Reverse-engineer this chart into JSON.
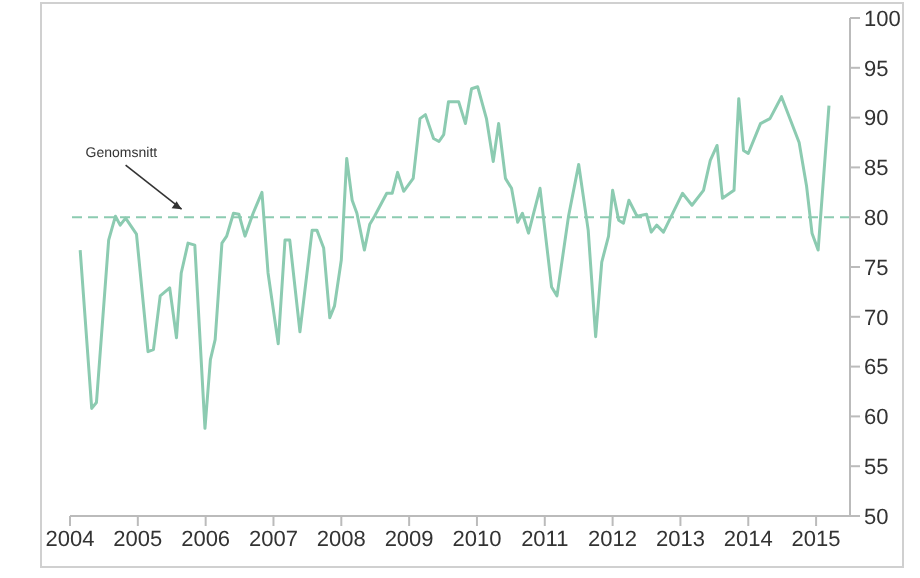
{
  "chart_data": {
    "type": "line",
    "x": [
      2004.15,
      2004.32,
      2004.39,
      2004.57,
      2004.67,
      2004.74,
      2004.82,
      2004.98,
      2005.15,
      2005.23,
      2005.33,
      2005.47,
      2005.57,
      2005.64,
      2005.74,
      2005.84,
      2005.99,
      2006.07,
      2006.14,
      2006.24,
      2006.31,
      2006.41,
      2006.49,
      2006.58,
      2006.7,
      2006.83,
      2006.92,
      2007.07,
      2007.17,
      2007.24,
      2007.39,
      2007.57,
      2007.64,
      2007.74,
      2007.83,
      2007.9,
      2008.0,
      2008.08,
      2008.16,
      2008.23,
      2008.34,
      2008.42,
      2008.49,
      2008.67,
      2008.75,
      2008.83,
      2008.92,
      2009.06,
      2009.16,
      2009.24,
      2009.36,
      2009.44,
      2009.51,
      2009.58,
      2009.73,
      2009.83,
      2009.92,
      2010.01,
      2010.14,
      2010.24,
      2010.32,
      2010.42,
      2010.51,
      2010.6,
      2010.67,
      2010.76,
      2010.93,
      2011.1,
      2011.18,
      2011.35,
      2011.5,
      2011.64,
      2011.75,
      2011.84,
      2011.94,
      2012.0,
      2012.09,
      2012.16,
      2012.24,
      2012.36,
      2012.5,
      2012.57,
      2012.65,
      2012.75,
      2013.03,
      2013.17,
      2013.34,
      2013.44,
      2013.54,
      2013.62,
      2013.79,
      2013.86,
      2013.93,
      2014.0,
      2014.18,
      2014.32,
      2014.49,
      2014.75,
      2014.86,
      2014.94,
      2015.03,
      2015.19
    ],
    "series": [
      {
        "color": "#8ccbb1",
        "values": [
          76.7,
          60.8,
          61.4,
          77.7,
          80.1,
          79.2,
          79.9,
          78.3,
          66.5,
          66.7,
          72.1,
          72.9,
          67.9,
          74.4,
          77.4,
          77.2,
          58.8,
          65.7,
          67.7,
          77.4,
          78.1,
          80.4,
          80.3,
          78.1,
          80.4,
          82.5,
          74.4,
          67.3,
          77.7,
          77.7,
          68.5,
          78.7,
          78.7,
          76.9,
          69.9,
          71.1,
          75.7,
          85.9,
          81.7,
          80.4,
          76.7,
          79.3,
          80.1,
          82.4,
          82.4,
          84.5,
          82.6,
          83.9,
          89.9,
          90.3,
          87.9,
          87.6,
          88.3,
          91.6,
          91.6,
          89.4,
          92.9,
          93.1,
          89.9,
          85.6,
          89.4,
          83.9,
          82.9,
          79.5,
          80.4,
          78.4,
          82.9,
          73.0,
          72.1,
          80.1,
          85.3,
          78.7,
          68.0,
          75.5,
          78.1,
          82.7,
          79.7,
          79.4,
          81.7,
          80.1,
          80.3,
          78.5,
          79.2,
          78.5,
          82.4,
          81.2,
          82.7,
          85.7,
          87.2,
          81.9,
          82.7,
          91.9,
          86.7,
          86.4,
          89.4,
          89.9,
          92.1,
          87.5,
          83.1,
          78.4,
          76.7,
          91.2
        ]
      }
    ],
    "xlim": [
      2004,
      2015.5
    ],
    "xticks": [
      2004,
      2005,
      2006,
      2007,
      2008,
      2009,
      2010,
      2011,
      2012,
      2013,
      2014,
      2015
    ],
    "ylim": [
      50,
      100
    ],
    "yticks": [
      50,
      55,
      60,
      65,
      70,
      75,
      80,
      85,
      90,
      95,
      100
    ],
    "ref_lines": [
      {
        "axis": "y",
        "value": 80,
        "label": "Genomsnitt",
        "color": "#8ccbb1",
        "line_style": "dashed"
      }
    ],
    "grid": false,
    "legend": false,
    "marker": "none",
    "line_style": "solid"
  }
}
